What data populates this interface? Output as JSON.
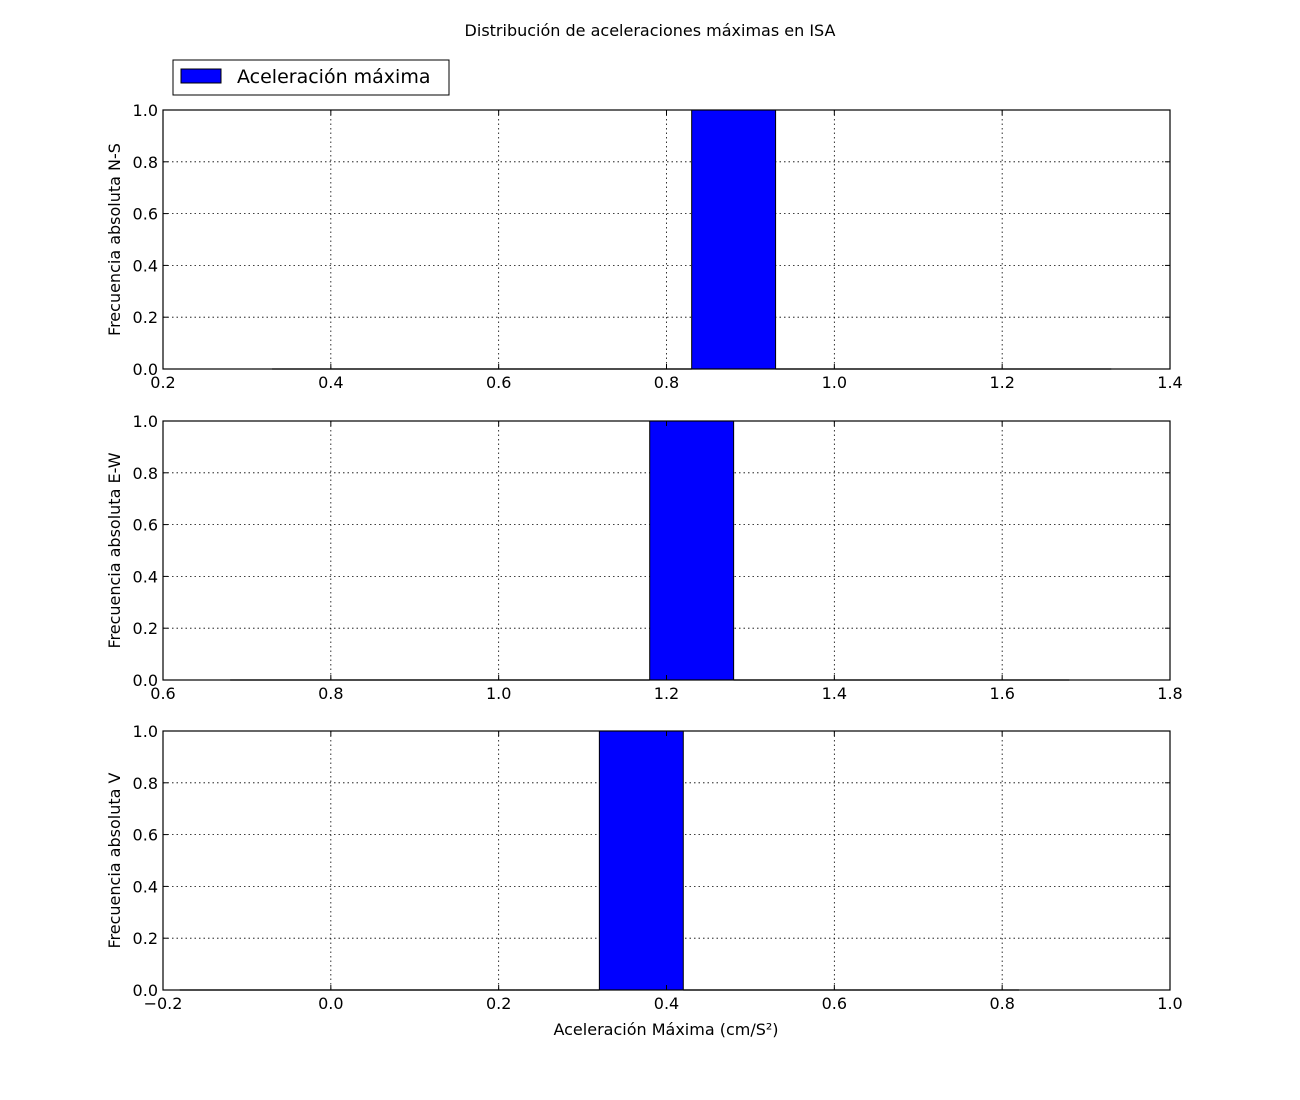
{
  "title": "Distribución de aceleraciones máximas en ISA",
  "legend": {
    "label": "Aceleración máxima",
    "color": "#0000ff",
    "placement": "top-left"
  },
  "xlabel": "Aceleración Máxima (cm/S²)",
  "chart_data": [
    {
      "type": "bar",
      "ylabel": "Frecuencia absoluta N-S",
      "xlim": [
        0.2,
        1.4
      ],
      "ylim": [
        0.0,
        1.0
      ],
      "xticks": [
        "0.2",
        "0.4",
        "0.6",
        "0.8",
        "1.0",
        "1.2",
        "1.4"
      ],
      "yticks": [
        "0.0",
        "0.2",
        "0.4",
        "0.6",
        "0.8",
        "1.0"
      ],
      "grid": true,
      "series": [
        {
          "name": "Aceleración máxima",
          "bins": [
            {
              "x0": 0.33,
              "x1": 0.43,
              "value": 0
            },
            {
              "x0": 0.43,
              "x1": 0.53,
              "value": 0
            },
            {
              "x0": 0.53,
              "x1": 0.63,
              "value": 0
            },
            {
              "x0": 0.63,
              "x1": 0.73,
              "value": 0
            },
            {
              "x0": 0.73,
              "x1": 0.83,
              "value": 0
            },
            {
              "x0": 0.83,
              "x1": 0.93,
              "value": 1
            },
            {
              "x0": 0.93,
              "x1": 1.03,
              "value": 0
            },
            {
              "x0": 1.03,
              "x1": 1.13,
              "value": 0
            },
            {
              "x0": 1.13,
              "x1": 1.23,
              "value": 0
            },
            {
              "x0": 1.23,
              "x1": 1.33,
              "value": 0
            }
          ]
        }
      ]
    },
    {
      "type": "bar",
      "ylabel": "Frecuencia absoluta E-W",
      "xlim": [
        0.6,
        1.8
      ],
      "ylim": [
        0.0,
        1.0
      ],
      "xticks": [
        "0.6",
        "0.8",
        "1.0",
        "1.2",
        "1.4",
        "1.6",
        "1.8"
      ],
      "yticks": [
        "0.0",
        "0.2",
        "0.4",
        "0.6",
        "0.8",
        "1.0"
      ],
      "grid": true,
      "series": [
        {
          "name": "Aceleración máxima",
          "bins": [
            {
              "x0": 0.68,
              "x1": 0.78,
              "value": 0
            },
            {
              "x0": 0.78,
              "x1": 0.88,
              "value": 0
            },
            {
              "x0": 0.88,
              "x1": 0.98,
              "value": 0
            },
            {
              "x0": 0.98,
              "x1": 1.08,
              "value": 0
            },
            {
              "x0": 1.08,
              "x1": 1.18,
              "value": 0
            },
            {
              "x0": 1.18,
              "x1": 1.28,
              "value": 1
            },
            {
              "x0": 1.28,
              "x1": 1.38,
              "value": 0
            },
            {
              "x0": 1.38,
              "x1": 1.48,
              "value": 0
            },
            {
              "x0": 1.48,
              "x1": 1.58,
              "value": 0
            },
            {
              "x0": 1.58,
              "x1": 1.68,
              "value": 0
            }
          ]
        }
      ]
    },
    {
      "type": "bar",
      "ylabel": "Frecuencia absoluta V",
      "xlim": [
        -0.2,
        1.0
      ],
      "ylim": [
        0.0,
        1.0
      ],
      "xticks": [
        "−0.2",
        "0.0",
        "0.2",
        "0.4",
        "0.6",
        "0.8",
        "1.0"
      ],
      "yticks": [
        "0.0",
        "0.2",
        "0.4",
        "0.6",
        "0.8",
        "1.0"
      ],
      "grid": true,
      "series": [
        {
          "name": "Aceleración máxima",
          "bins": [
            {
              "x0": -0.18,
              "x1": -0.08,
              "value": 0
            },
            {
              "x0": -0.08,
              "x1": 0.02,
              "value": 0
            },
            {
              "x0": 0.02,
              "x1": 0.12,
              "value": 0
            },
            {
              "x0": 0.12,
              "x1": 0.22,
              "value": 0
            },
            {
              "x0": 0.22,
              "x1": 0.32,
              "value": 0
            },
            {
              "x0": 0.32,
              "x1": 0.42,
              "value": 1
            },
            {
              "x0": 0.42,
              "x1": 0.52,
              "value": 0
            },
            {
              "x0": 0.52,
              "x1": 0.62,
              "value": 0
            },
            {
              "x0": 0.62,
              "x1": 0.72,
              "value": 0
            },
            {
              "x0": 0.72,
              "x1": 0.82,
              "value": 0
            }
          ]
        }
      ]
    }
  ]
}
